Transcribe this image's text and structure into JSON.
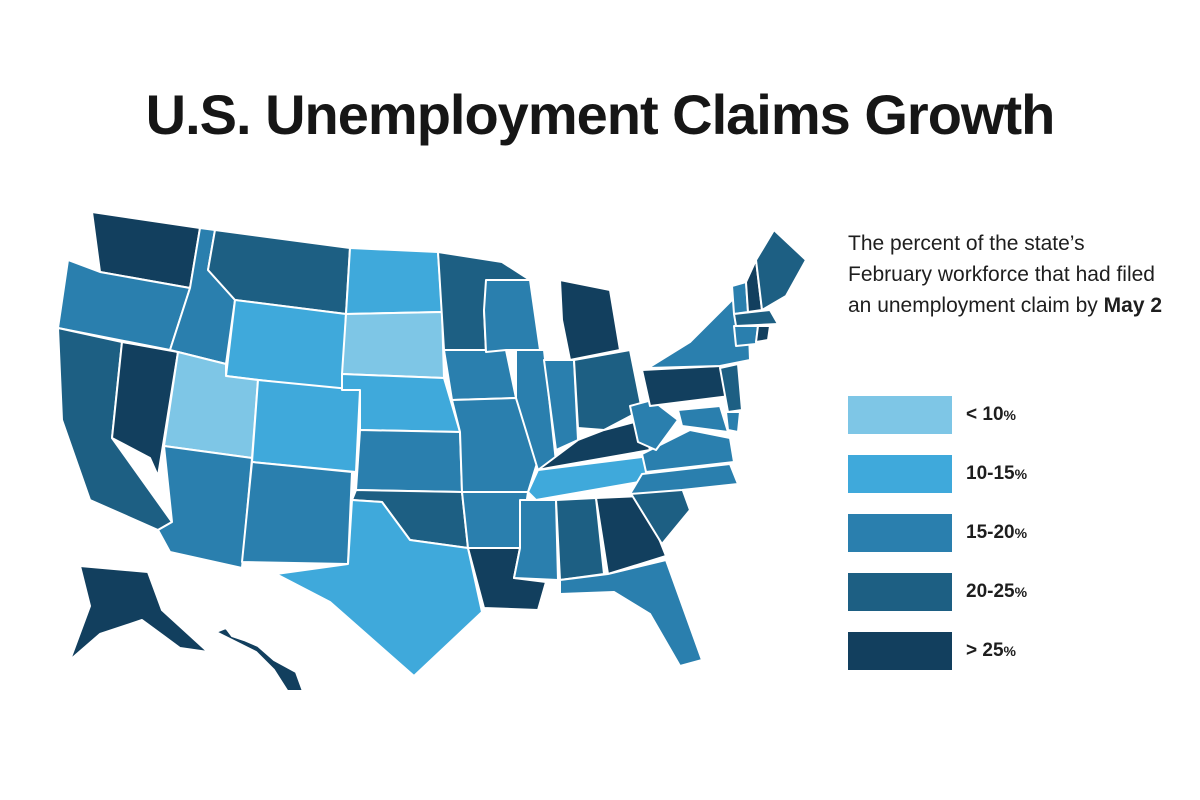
{
  "title": "U.S. Unemployment Claims Growth",
  "description": {
    "text": "The percent of the state’s February workforce that had filed an unemployment claim by",
    "bold": "May 2"
  },
  "legend": [
    {
      "key": "c1",
      "label": "< 10",
      "suffix": "%",
      "color": "#7ec6e6"
    },
    {
      "key": "c2",
      "label": "10-15",
      "suffix": "%",
      "color": "#3fa9db"
    },
    {
      "key": "c3",
      "label": "15-20",
      "suffix": "%",
      "color": "#2a7fae"
    },
    {
      "key": "c4",
      "label": "20-25",
      "suffix": "%",
      "color": "#1d5f83"
    },
    {
      "key": "c5",
      "label": "> 25",
      "suffix": "%",
      "color": "#123f5e"
    }
  ],
  "state_categories": {
    "WA": "c5",
    "OR": "c3",
    "CA": "c4",
    "NV": "c5",
    "ID": "c3",
    "MT": "c4",
    "WY": "c2",
    "UT": "c1",
    "AZ": "c3",
    "CO": "c2",
    "NM": "c3",
    "ND": "c2",
    "SD": "c1",
    "NE": "c2",
    "KS": "c3",
    "OK": "c4",
    "TX": "c2",
    "MN": "c4",
    "IA": "c3",
    "MO": "c3",
    "AR": "c3",
    "LA": "c5",
    "WI": "c3",
    "IL": "c3",
    "MI": "c5",
    "IN": "c3",
    "OH": "c4",
    "KY": "c5",
    "TN": "c2",
    "MS": "c3",
    "AL": "c4",
    "GA": "c5",
    "FL": "c3",
    "SC": "c4",
    "NC": "c3",
    "VA": "c3",
    "WV": "c3",
    "PA": "c5",
    "NY": "c3",
    "VT": "c3",
    "NH": "c5",
    "ME": "c4",
    "MA": "c4",
    "CT": "c3",
    "RI": "c5",
    "NJ": "c4",
    "DE": "c3",
    "MD": "c3",
    "AK": "c5",
    "HI": "c5"
  }
}
